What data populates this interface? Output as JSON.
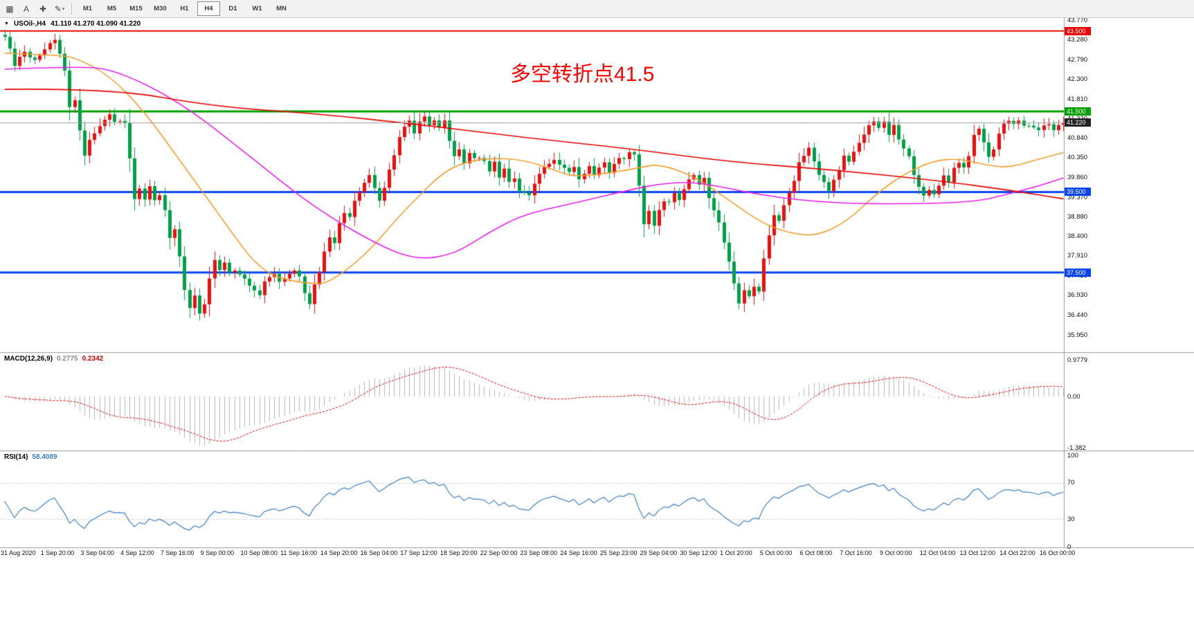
{
  "toolbar": {
    "tool_buttons": [
      {
        "name": "chart-window",
        "glyph": "▦",
        "dropdown": false
      },
      {
        "name": "text-label-tool",
        "glyph": "A",
        "dropdown": false
      },
      {
        "name": "crosshair-tool",
        "glyph": "✚",
        "dropdown": false
      },
      {
        "name": "draw-tools",
        "glyph": "✎",
        "dropdown": true
      }
    ],
    "timeframes": [
      "M1",
      "M5",
      "M15",
      "M30",
      "H1",
      "H4",
      "D1",
      "W1",
      "MN"
    ],
    "active_timeframe": "H4"
  },
  "main_chart": {
    "symbol_readout": {
      "collapse_glyph": "▼",
      "symbol_period": "USOil-,H4",
      "ohlc": "41.110 41.270 41.090 41.220"
    },
    "annotation": {
      "text": "多空转折点41.5",
      "color": "#ff0000"
    },
    "y_axis_ticks": [
      "43.770",
      "43.280",
      "42.790",
      "42.300",
      "41.810",
      "41.320",
      "40.840",
      "40.350",
      "39.860",
      "39.370",
      "38.880",
      "38.400",
      "37.910",
      "37.420",
      "36.930",
      "36.440",
      "35.950"
    ],
    "price_levels": [
      {
        "price": 43.5,
        "label": "43.500",
        "color": "#f00000",
        "width": 2
      },
      {
        "price": 41.5,
        "label": "41.500",
        "color": "#00a000",
        "width": 3
      },
      {
        "price": 39.5,
        "label": "39.500",
        "color": "#0844f0",
        "width": 3
      },
      {
        "price": 37.5,
        "label": "37.500",
        "color": "#0844f0",
        "width": 3
      }
    ],
    "current_price": {
      "price": 41.22,
      "label": "41.220",
      "badge_color": "#222222",
      "line_color": "#9c9c9c"
    }
  },
  "macd_panel": {
    "title": "MACD(12,26,9)",
    "value_main": "0.2775",
    "value_signal": "0.2342",
    "axis_labels": [
      "0.9779",
      "0.00",
      "-1.382"
    ],
    "histogram_color": "#b6b6b6",
    "signal_color": "#e00000"
  },
  "rsi_panel": {
    "title": "RSI(14)",
    "value": "58.4089",
    "axis_labels": [
      "100",
      "70",
      "30",
      "0"
    ],
    "line_color": "#3d7fc1",
    "level_color": "#cccccc"
  },
  "x_axis": {
    "bars_per_label": 8,
    "labels": [
      "31 Aug 2020",
      "1 Sep 20:00",
      "3 Sep 04:00",
      "4 Sep 12:00",
      "7 Sep 16:00",
      "9 Sep 00:00",
      "10 Sep 08:00",
      "11 Sep 16:00",
      "14 Sep 20:00",
      "16 Sep 04:00",
      "17 Sep 12:00",
      "18 Sep 20:00",
      "22 Sep 00:00",
      "23 Sep 08:00",
      "24 Sep 16:00",
      "25 Sep 23:00",
      "29 Sep 04:00",
      "30 Sep 12:00",
      "1 Oct 20:00",
      "5 Oct 00:00",
      "6 Oct 08:00",
      "7 Oct 16:00",
      "9 Oct 00:00",
      "12 Oct 04:00",
      "13 Oct 12:00",
      "14 Oct 22:00",
      "16 Oct 00:00"
    ]
  },
  "chart_data": {
    "type": "candlestick",
    "symbol": "USOil-",
    "timeframe": "H4",
    "bars": 213,
    "last_close": 41.22,
    "ohlc_display": {
      "open": "41.110",
      "high": "41.270",
      "low": "41.090",
      "close": "41.220"
    },
    "price_axis": {
      "min": 35.95,
      "max": 43.77
    },
    "bull_color": "#ea1010",
    "bear_color": "#00a04a",
    "close_path": [
      [
        0,
        43.4
      ],
      [
        1,
        43.05
      ],
      [
        2,
        42.6
      ],
      [
        4,
        43.0
      ],
      [
        6,
        42.75
      ],
      [
        8,
        43.05
      ],
      [
        10,
        43.3
      ],
      [
        11,
        42.95
      ],
      [
        12,
        42.55
      ],
      [
        13,
        41.55
      ],
      [
        14,
        41.8
      ],
      [
        15,
        41.0
      ],
      [
        16,
        40.4
      ],
      [
        17,
        40.85
      ],
      [
        19,
        41.15
      ],
      [
        21,
        41.4
      ],
      [
        22,
        41.3
      ],
      [
        24,
        41.2
      ],
      [
        25,
        40.3
      ],
      [
        26,
        39.35
      ],
      [
        27,
        39.55
      ],
      [
        28,
        39.3
      ],
      [
        29,
        39.6
      ],
      [
        30,
        39.3
      ],
      [
        31,
        39.45
      ],
      [
        32,
        39.1
      ],
      [
        33,
        38.35
      ],
      [
        34,
        38.6
      ],
      [
        35,
        37.9
      ],
      [
        36,
        37.1
      ],
      [
        37,
        36.6
      ],
      [
        38,
        36.95
      ],
      [
        39,
        36.45
      ],
      [
        40,
        36.75
      ],
      [
        41,
        37.3
      ],
      [
        42,
        37.85
      ],
      [
        43,
        37.55
      ],
      [
        44,
        37.75
      ],
      [
        45,
        37.45
      ],
      [
        46,
        37.6
      ],
      [
        48,
        37.35
      ],
      [
        50,
        37.1
      ],
      [
        51,
        36.95
      ],
      [
        52,
        37.3
      ],
      [
        54,
        37.5
      ],
      [
        55,
        37.3
      ],
      [
        56,
        37.4
      ],
      [
        58,
        37.55
      ],
      [
        59,
        37.4
      ],
      [
        60,
        36.95
      ],
      [
        61,
        36.75
      ],
      [
        62,
        37.15
      ],
      [
        63,
        37.5
      ],
      [
        64,
        38.0
      ],
      [
        65,
        38.4
      ],
      [
        66,
        38.25
      ],
      [
        67,
        38.7
      ],
      [
        68,
        39.0
      ],
      [
        69,
        38.85
      ],
      [
        70,
        39.25
      ],
      [
        71,
        39.55
      ],
      [
        72,
        39.7
      ],
      [
        73,
        39.9
      ],
      [
        74,
        39.6
      ],
      [
        75,
        39.3
      ],
      [
        76,
        39.55
      ],
      [
        77,
        40.0
      ],
      [
        78,
        40.45
      ],
      [
        79,
        40.9
      ],
      [
        80,
        41.1
      ],
      [
        81,
        41.25
      ],
      [
        82,
        41.0
      ],
      [
        83,
        41.2
      ],
      [
        84,
        41.35
      ],
      [
        85,
        41.1
      ],
      [
        86,
        41.3
      ],
      [
        87,
        41.15
      ],
      [
        88,
        41.3
      ],
      [
        89,
        40.75
      ],
      [
        90,
        40.35
      ],
      [
        91,
        40.55
      ],
      [
        92,
        40.2
      ],
      [
        93,
        40.45
      ],
      [
        94,
        40.3
      ],
      [
        96,
        40.3
      ],
      [
        97,
        40.05
      ],
      [
        98,
        40.2
      ],
      [
        99,
        39.9
      ],
      [
        100,
        40.05
      ],
      [
        101,
        39.75
      ],
      [
        102,
        39.85
      ],
      [
        103,
        39.55
      ],
      [
        104,
        39.5
      ],
      [
        105,
        39.45
      ],
      [
        106,
        39.7
      ],
      [
        107,
        39.9
      ],
      [
        108,
        40.1
      ],
      [
        110,
        40.3
      ],
      [
        112,
        40.15
      ],
      [
        113,
        39.95
      ],
      [
        114,
        40.1
      ],
      [
        115,
        39.85
      ],
      [
        116,
        40.0
      ],
      [
        117,
        40.15
      ],
      [
        118,
        39.95
      ],
      [
        119,
        40.1
      ],
      [
        120,
        40.2
      ],
      [
        121,
        40.0
      ],
      [
        122,
        40.2
      ],
      [
        123,
        40.4
      ],
      [
        124,
        40.3
      ],
      [
        125,
        40.45
      ],
      [
        126,
        40.45
      ],
      [
        127,
        39.6
      ],
      [
        128,
        38.75
      ],
      [
        129,
        39.05
      ],
      [
        130,
        38.7
      ],
      [
        131,
        39.1
      ],
      [
        132,
        39.3
      ],
      [
        133,
        39.2
      ],
      [
        134,
        39.5
      ],
      [
        135,
        39.35
      ],
      [
        136,
        39.6
      ],
      [
        137,
        39.8
      ],
      [
        138,
        39.95
      ],
      [
        139,
        39.7
      ],
      [
        140,
        39.85
      ],
      [
        141,
        39.4
      ],
      [
        142,
        39.1
      ],
      [
        143,
        38.75
      ],
      [
        144,
        38.3
      ],
      [
        145,
        37.8
      ],
      [
        146,
        37.2
      ],
      [
        147,
        36.75
      ],
      [
        148,
        37.05
      ],
      [
        149,
        36.85
      ],
      [
        150,
        37.2
      ],
      [
        151,
        37.0
      ],
      [
        152,
        37.8
      ],
      [
        153,
        38.4
      ],
      [
        154,
        38.9
      ],
      [
        155,
        38.75
      ],
      [
        156,
        39.2
      ],
      [
        157,
        39.5
      ],
      [
        158,
        39.8
      ],
      [
        159,
        40.2
      ],
      [
        160,
        40.45
      ],
      [
        161,
        40.6
      ],
      [
        162,
        40.3
      ],
      [
        163,
        39.95
      ],
      [
        164,
        39.7
      ],
      [
        165,
        39.55
      ],
      [
        166,
        39.8
      ],
      [
        167,
        40.1
      ],
      [
        168,
        40.35
      ],
      [
        169,
        40.2
      ],
      [
        170,
        40.5
      ],
      [
        171,
        40.7
      ],
      [
        172,
        40.9
      ],
      [
        173,
        41.1
      ],
      [
        174,
        41.25
      ],
      [
        175,
        41.05
      ],
      [
        176,
        41.2
      ],
      [
        177,
        40.95
      ],
      [
        178,
        41.15
      ],
      [
        179,
        40.85
      ],
      [
        180,
        40.6
      ],
      [
        181,
        40.4
      ],
      [
        182,
        39.9
      ],
      [
        183,
        39.6
      ],
      [
        184,
        39.45
      ],
      [
        185,
        39.6
      ],
      [
        186,
        39.4
      ],
      [
        187,
        39.7
      ],
      [
        188,
        39.9
      ],
      [
        189,
        39.75
      ],
      [
        190,
        40.05
      ],
      [
        191,
        40.2
      ],
      [
        192,
        40.1
      ],
      [
        193,
        40.45
      ],
      [
        194,
        40.9
      ],
      [
        195,
        41.05
      ],
      [
        196,
        40.7
      ],
      [
        197,
        40.4
      ],
      [
        198,
        40.6
      ],
      [
        199,
        40.95
      ],
      [
        200,
        41.2
      ],
      [
        201,
        41.3
      ],
      [
        202,
        41.15
      ],
      [
        203,
        41.25
      ],
      [
        204,
        41.1
      ],
      [
        205,
        41.2
      ],
      [
        206,
        41.15
      ],
      [
        207,
        41.05
      ],
      [
        208,
        41.15
      ],
      [
        209,
        41.22
      ],
      [
        210,
        41.05
      ],
      [
        211,
        41.18
      ],
      [
        212,
        41.22
      ]
    ],
    "moving_averages": [
      {
        "name": "fast-ma",
        "color": "#f0a030",
        "path": [
          [
            0,
            42.95
          ],
          [
            10,
            42.9
          ],
          [
            14,
            42.85
          ],
          [
            21,
            42.4
          ],
          [
            28,
            41.5
          ],
          [
            35,
            40.3
          ],
          [
            42,
            39.1
          ],
          [
            46,
            38.4
          ],
          [
            50,
            37.75
          ],
          [
            54,
            37.4
          ],
          [
            58,
            37.28
          ],
          [
            62,
            37.22
          ],
          [
            65,
            37.25
          ],
          [
            72,
            37.9
          ],
          [
            79,
            38.9
          ],
          [
            83,
            39.4
          ],
          [
            87,
            39.9
          ],
          [
            91,
            40.2
          ],
          [
            97,
            40.35
          ],
          [
            104,
            40.3
          ],
          [
            110,
            40.05
          ],
          [
            114,
            39.88
          ],
          [
            120,
            39.95
          ],
          [
            127,
            40.1
          ],
          [
            131,
            40.2
          ],
          [
            138,
            39.9
          ],
          [
            145,
            39.3
          ],
          [
            152,
            38.7
          ],
          [
            158,
            38.45
          ],
          [
            163,
            38.42
          ],
          [
            169,
            38.8
          ],
          [
            174,
            39.4
          ],
          [
            180,
            39.95
          ],
          [
            186,
            40.28
          ],
          [
            191,
            40.33
          ],
          [
            196,
            40.18
          ],
          [
            201,
            40.1
          ],
          [
            206,
            40.28
          ],
          [
            212,
            40.48
          ]
        ]
      },
      {
        "name": "medium-ma",
        "color": "#e520e5",
        "path": [
          [
            0,
            42.55
          ],
          [
            14,
            42.62
          ],
          [
            22,
            42.55
          ],
          [
            35,
            41.75
          ],
          [
            48,
            40.5
          ],
          [
            62,
            39.1
          ],
          [
            76,
            38.1
          ],
          [
            83,
            37.82
          ],
          [
            90,
            37.95
          ],
          [
            97,
            38.5
          ],
          [
            104,
            38.95
          ],
          [
            115,
            39.25
          ],
          [
            125,
            39.55
          ],
          [
            132,
            39.72
          ],
          [
            139,
            39.75
          ],
          [
            152,
            39.4
          ],
          [
            166,
            39.22
          ],
          [
            180,
            39.2
          ],
          [
            194,
            39.25
          ],
          [
            201,
            39.45
          ],
          [
            207,
            39.65
          ],
          [
            212,
            39.85
          ]
        ]
      },
      {
        "name": "slow-ma",
        "color": "#e60000",
        "path": [
          [
            0,
            42.05
          ],
          [
            21,
            42.08
          ],
          [
            42,
            41.62
          ],
          [
            62,
            41.45
          ],
          [
            83,
            41.18
          ],
          [
            104,
            40.85
          ],
          [
            125,
            40.58
          ],
          [
            145,
            40.25
          ],
          [
            166,
            40.05
          ],
          [
            187,
            39.78
          ],
          [
            201,
            39.55
          ],
          [
            212,
            39.33
          ]
        ]
      }
    ],
    "macd": {
      "fast": 12,
      "slow": 26,
      "signal_period": 9,
      "axis_max": 0.9779,
      "axis_min": -1.382,
      "last_main": 0.2775,
      "last_signal": 0.2342
    },
    "rsi": {
      "period": 14,
      "last": 58.4089,
      "levels": [
        70,
        30
      ]
    }
  }
}
